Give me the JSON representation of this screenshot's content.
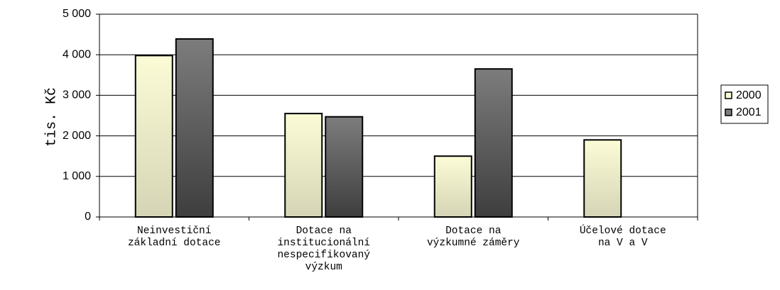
{
  "chart_data": {
    "type": "bar",
    "y_label": "tis. Kč",
    "categories": [
      "Neinvestiční\nzákladní dotace",
      "Dotace na\ninstitucionální\nnespecifikovaný\nvýzkum",
      "Dotace na\nvýzkumné záměry",
      "Účelové dotace\nna V a V"
    ],
    "series": [
      {
        "name": "2000",
        "color": "#fbfbd6",
        "values": [
          3980,
          2550,
          1500,
          1900
        ]
      },
      {
        "name": "2001",
        "color": "#7c7c7c",
        "values": [
          4390,
          2470,
          3650,
          null
        ]
      }
    ],
    "ylim": [
      0,
      5000
    ],
    "yticks": [
      0,
      {
        "value": 1000,
        "label": "1 000"
      },
      {
        "value": 2000,
        "label": "2 000"
      },
      {
        "value": 3000,
        "label": "3 000"
      },
      {
        "value": 4000,
        "label": "4 000"
      },
      {
        "value": 5000,
        "label": "5 000"
      }
    ],
    "grid": true,
    "legend": "right"
  }
}
